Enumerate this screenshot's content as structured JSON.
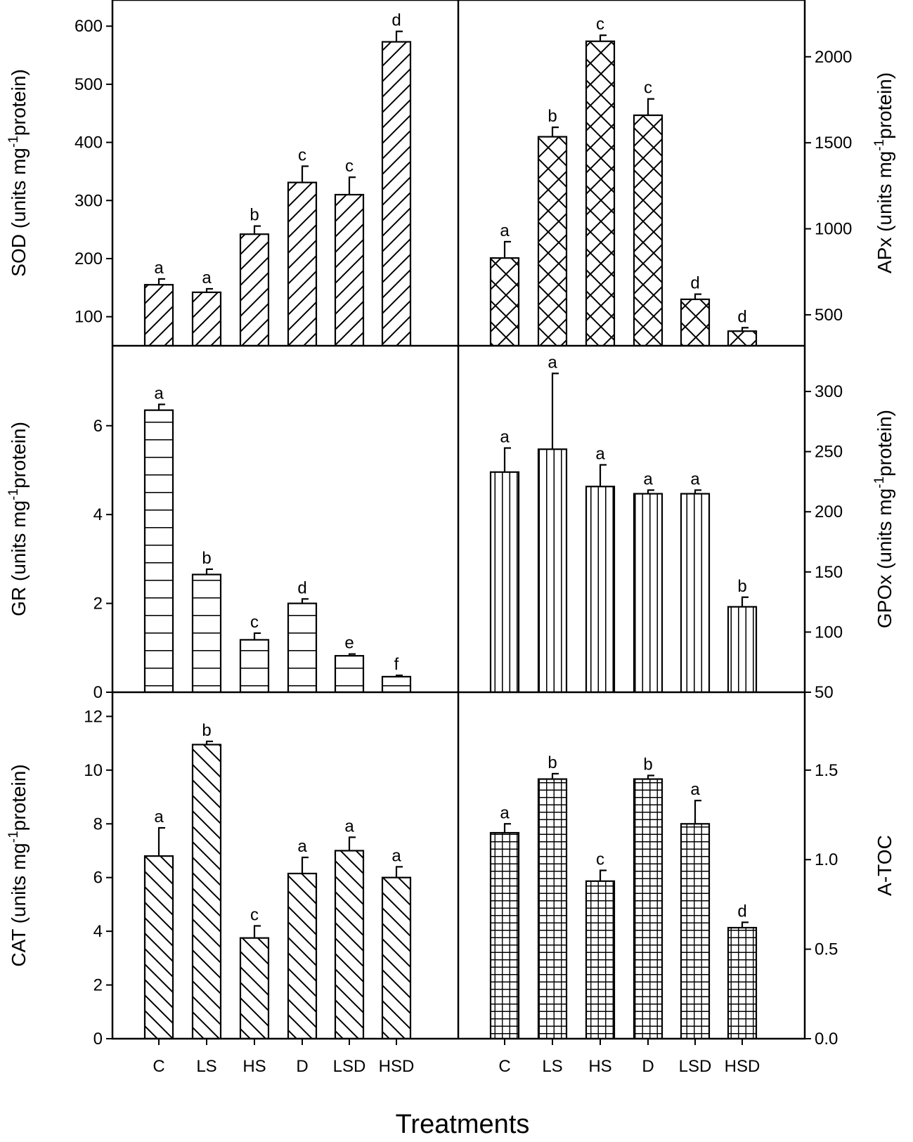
{
  "figure": {
    "x_axis_title": "Treatments",
    "categories": [
      "C",
      "LS",
      "HS",
      "D",
      "LSD",
      "HSD"
    ],
    "colors": {
      "ink": "#000000",
      "fill": "#ffffff"
    }
  },
  "chart_data": [
    {
      "id": "sod",
      "type": "bar",
      "title": "",
      "ylabel": "SOD (units mg-1protein)",
      "ylabel_parts": [
        "SOD (units mg",
        "-1",
        "protein)"
      ],
      "ylim": [
        50,
        645
      ],
      "yticks": [
        100,
        200,
        300,
        400,
        500,
        600
      ],
      "tick_decimals": 0,
      "axis_side": "left",
      "position": "top-left",
      "pattern": "diag-up",
      "categories": [
        "C",
        "LS",
        "HS",
        "D",
        "LSD",
        "HSD"
      ],
      "values": [
        155,
        142,
        242,
        331,
        310,
        573
      ],
      "errors": [
        10,
        6,
        14,
        28,
        30,
        18
      ],
      "labels": [
        "a",
        "a",
        "b",
        "c",
        "c",
        "d"
      ]
    },
    {
      "id": "apx",
      "type": "bar",
      "title": "",
      "ylabel": "APx (units mg-1protein)",
      "ylabel_parts": [
        "APx (units mg",
        "-1",
        "protein)"
      ],
      "ylim": [
        320,
        2330
      ],
      "yticks": [
        500,
        1000,
        1500,
        2000
      ],
      "tick_decimals": 0,
      "axis_side": "right",
      "position": "top-right",
      "pattern": "crosshatch-diag",
      "categories": [
        "C",
        "LS",
        "HS",
        "D",
        "LSD",
        "HSD"
      ],
      "values": [
        830,
        1535,
        2090,
        1660,
        590,
        405
      ],
      "errors": [
        95,
        55,
        35,
        95,
        30,
        20
      ],
      "labels": [
        "a",
        "b",
        "c",
        "c",
        "d",
        "d"
      ]
    },
    {
      "id": "gr",
      "type": "bar",
      "title": "",
      "ylabel": "GR (units mg-1protein)",
      "ylabel_parts": [
        "GR (units mg",
        "-1",
        "protein)"
      ],
      "ylim": [
        0,
        7.8
      ],
      "yticks": [
        0,
        2,
        4,
        6
      ],
      "tick_decimals": 0,
      "axis_side": "left",
      "position": "middle-left",
      "pattern": "horizontal",
      "categories": [
        "C",
        "LS",
        "HS",
        "D",
        "LSD",
        "HSD"
      ],
      "values": [
        6.35,
        2.65,
        1.18,
        2.0,
        0.82,
        0.35
      ],
      "errors": [
        0.13,
        0.12,
        0.15,
        0.1,
        0.04,
        0.03
      ],
      "labels": [
        "a",
        "b",
        "c",
        "d",
        "e",
        "f"
      ]
    },
    {
      "id": "gpox",
      "type": "bar",
      "title": "",
      "ylabel": "GPOx (units mg-1protein)",
      "ylabel_parts": [
        "GPOx (units mg",
        "-1",
        "protein)"
      ],
      "ylim": [
        50,
        338
      ],
      "yticks": [
        50,
        100,
        150,
        200,
        250,
        300
      ],
      "tick_decimals": 0,
      "axis_side": "right",
      "position": "middle-right",
      "pattern": "vertical",
      "categories": [
        "C",
        "LS",
        "HS",
        "D",
        "LSD",
        "HSD"
      ],
      "values": [
        233,
        252,
        221,
        215,
        215,
        121
      ],
      "errors": [
        20,
        63,
        18,
        3,
        3,
        8
      ],
      "labels": [
        "a",
        "a",
        "a",
        "a",
        "a",
        "b"
      ]
    },
    {
      "id": "cat",
      "type": "bar",
      "title": "",
      "ylabel": "CAT (units mg-1protein)",
      "ylabel_parts": [
        "CAT (units mg",
        "-1",
        "protein)"
      ],
      "ylim": [
        0,
        12.9
      ],
      "yticks": [
        0,
        2,
        4,
        6,
        8,
        10,
        12
      ],
      "tick_decimals": 0,
      "axis_side": "left",
      "position": "bottom-left",
      "pattern": "diag-down",
      "categories": [
        "C",
        "LS",
        "HS",
        "D",
        "LSD",
        "HSD"
      ],
      "values": [
        6.8,
        10.95,
        3.75,
        6.15,
        7.0,
        6.0
      ],
      "errors": [
        1.05,
        0.12,
        0.45,
        0.6,
        0.5,
        0.4
      ],
      "labels": [
        "a",
        "b",
        "c",
        "a",
        "a",
        "a"
      ]
    },
    {
      "id": "atoc",
      "type": "bar",
      "title": "",
      "ylabel": "A-TOC",
      "ylabel_parts": [
        "A-TOC",
        "",
        ""
      ],
      "ylim": [
        0,
        1.935
      ],
      "yticks": [
        0.0,
        0.5,
        1.0,
        1.5
      ],
      "tick_decimals": 1,
      "axis_side": "right",
      "position": "bottom-right",
      "pattern": "grid",
      "categories": [
        "C",
        "LS",
        "HS",
        "D",
        "LSD",
        "HSD"
      ],
      "values": [
        1.15,
        1.45,
        0.88,
        1.45,
        1.2,
        0.62
      ],
      "errors": [
        0.05,
        0.03,
        0.06,
        0.02,
        0.13,
        0.03
      ],
      "labels": [
        "a",
        "b",
        "c",
        "b",
        "a",
        "d"
      ]
    }
  ]
}
